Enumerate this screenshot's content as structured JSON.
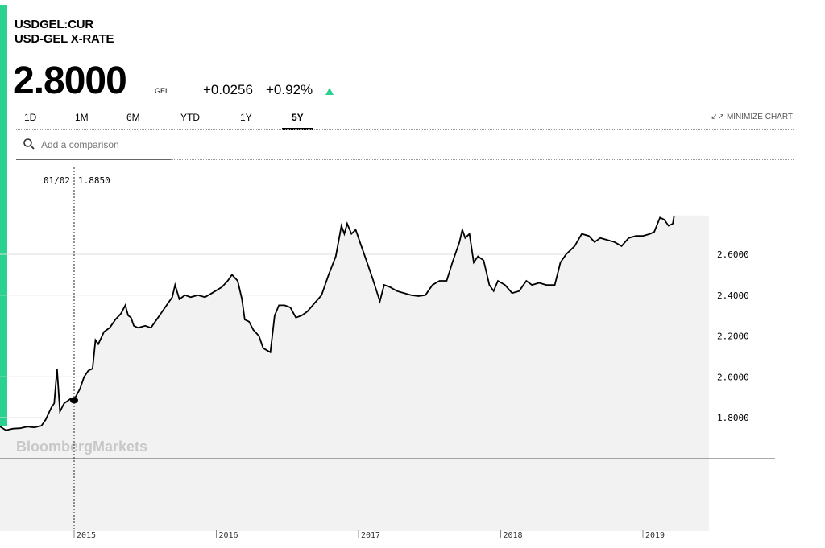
{
  "header": {
    "ticker": "USDGEL:CUR",
    "name": "USD-GEL X-RATE",
    "price": "2.8000",
    "currency": "GEL",
    "change": "+0.0256",
    "change_pct": "+0.92%",
    "direction_icon": "up-triangle-icon",
    "accent_color": "#2bd18e"
  },
  "tabs": [
    {
      "label": "1D",
      "active": false
    },
    {
      "label": "1M",
      "active": false
    },
    {
      "label": "6M",
      "active": false
    },
    {
      "label": "YTD",
      "active": false
    },
    {
      "label": "1Y",
      "active": false
    },
    {
      "label": "5Y",
      "active": true
    }
  ],
  "minimize_label": "MINIMIZE CHART",
  "search": {
    "placeholder": "Add a comparison",
    "value": ""
  },
  "watermark": "BloombergMarkets",
  "chart_data": {
    "type": "area",
    "x_ticks": [
      "2015",
      "2016",
      "2017",
      "2018",
      "2019"
    ],
    "y_ticks": [
      "1.8000",
      "2.0000",
      "2.2000",
      "2.4000",
      "2.6000"
    ],
    "ylim": [
      1.6,
      2.8
    ],
    "crosshair": {
      "date": "01/02",
      "value": "1.8850"
    },
    "line_color": "#000000",
    "fill_color": "#f2f2f2",
    "series": [
      {
        "values": [
          [
            2014.42,
            1.768
          ],
          [
            2014.47,
            1.76
          ],
          [
            2014.52,
            1.738
          ],
          [
            2014.57,
            1.746
          ],
          [
            2014.62,
            1.748
          ],
          [
            2014.67,
            1.756
          ],
          [
            2014.72,
            1.752
          ],
          [
            2014.77,
            1.76
          ],
          [
            2014.8,
            1.79
          ],
          [
            2014.84,
            1.85
          ],
          [
            2014.86,
            1.87
          ],
          [
            2014.88,
            2.04
          ],
          [
            2014.9,
            1.83
          ],
          [
            2014.93,
            1.87
          ],
          [
            2014.95,
            1.88
          ],
          [
            2014.98,
            1.895
          ],
          [
            2015.0,
            1.888
          ],
          [
            2015.04,
            1.94
          ],
          [
            2015.07,
            2.0
          ],
          [
            2015.1,
            2.03
          ],
          [
            2015.13,
            2.04
          ],
          [
            2015.15,
            2.18
          ],
          [
            2015.17,
            2.16
          ],
          [
            2015.21,
            2.22
          ],
          [
            2015.25,
            2.24
          ],
          [
            2015.29,
            2.28
          ],
          [
            2015.33,
            2.31
          ],
          [
            2015.36,
            2.35
          ],
          [
            2015.38,
            2.3
          ],
          [
            2015.4,
            2.29
          ],
          [
            2015.42,
            2.25
          ],
          [
            2015.45,
            2.24
          ],
          [
            2015.5,
            2.25
          ],
          [
            2015.54,
            2.24
          ],
          [
            2015.58,
            2.28
          ],
          [
            2015.62,
            2.32
          ],
          [
            2015.66,
            2.36
          ],
          [
            2015.69,
            2.39
          ],
          [
            2015.71,
            2.45
          ],
          [
            2015.74,
            2.38
          ],
          [
            2015.78,
            2.4
          ],
          [
            2015.82,
            2.39
          ],
          [
            2015.87,
            2.4
          ],
          [
            2015.92,
            2.39
          ],
          [
            2015.97,
            2.41
          ],
          [
            2016.04,
            2.44
          ],
          [
            2016.08,
            2.47
          ],
          [
            2016.11,
            2.5
          ],
          [
            2016.15,
            2.47
          ],
          [
            2016.18,
            2.38
          ],
          [
            2016.2,
            2.28
          ],
          [
            2016.23,
            2.27
          ],
          [
            2016.26,
            2.23
          ],
          [
            2016.3,
            2.2
          ],
          [
            2016.33,
            2.14
          ],
          [
            2016.38,
            2.12
          ],
          [
            2016.41,
            2.3
          ],
          [
            2016.44,
            2.35
          ],
          [
            2016.48,
            2.35
          ],
          [
            2016.52,
            2.34
          ],
          [
            2016.56,
            2.29
          ],
          [
            2016.6,
            2.3
          ],
          [
            2016.64,
            2.32
          ],
          [
            2016.69,
            2.36
          ],
          [
            2016.74,
            2.4
          ],
          [
            2016.79,
            2.5
          ],
          [
            2016.84,
            2.59
          ],
          [
            2016.88,
            2.74
          ],
          [
            2016.9,
            2.7
          ],
          [
            2016.92,
            2.75
          ],
          [
            2016.95,
            2.7
          ],
          [
            2016.98,
            2.72
          ],
          [
            2017.02,
            2.64
          ],
          [
            2017.06,
            2.56
          ],
          [
            2017.1,
            2.48
          ],
          [
            2017.15,
            2.37
          ],
          [
            2017.18,
            2.45
          ],
          [
            2017.22,
            2.44
          ],
          [
            2017.27,
            2.42
          ],
          [
            2017.32,
            2.41
          ],
          [
            2017.37,
            2.4
          ],
          [
            2017.42,
            2.395
          ],
          [
            2017.47,
            2.4
          ],
          [
            2017.52,
            2.45
          ],
          [
            2017.57,
            2.47
          ],
          [
            2017.62,
            2.47
          ],
          [
            2017.66,
            2.56
          ],
          [
            2017.71,
            2.66
          ],
          [
            2017.73,
            2.72
          ],
          [
            2017.75,
            2.68
          ],
          [
            2017.78,
            2.7
          ],
          [
            2017.81,
            2.56
          ],
          [
            2017.84,
            2.59
          ],
          [
            2017.88,
            2.57
          ],
          [
            2017.92,
            2.45
          ],
          [
            2017.95,
            2.42
          ],
          [
            2017.98,
            2.47
          ],
          [
            2018.03,
            2.45
          ],
          [
            2018.08,
            2.41
          ],
          [
            2018.13,
            2.42
          ],
          [
            2018.18,
            2.47
          ],
          [
            2018.22,
            2.45
          ],
          [
            2018.27,
            2.46
          ],
          [
            2018.32,
            2.45
          ],
          [
            2018.38,
            2.45
          ],
          [
            2018.42,
            2.56
          ],
          [
            2018.46,
            2.6
          ],
          [
            2018.52,
            2.64
          ],
          [
            2018.57,
            2.7
          ],
          [
            2018.62,
            2.69
          ],
          [
            2018.66,
            2.66
          ],
          [
            2018.7,
            2.68
          ],
          [
            2018.75,
            2.67
          ],
          [
            2018.8,
            2.66
          ],
          [
            2018.85,
            2.64
          ],
          [
            2018.9,
            2.68
          ],
          [
            2018.95,
            2.69
          ],
          [
            2019.0,
            2.69
          ],
          [
            2019.05,
            2.7
          ],
          [
            2019.08,
            2.71
          ],
          [
            2019.12,
            2.78
          ],
          [
            2019.15,
            2.77
          ],
          [
            2019.18,
            2.74
          ],
          [
            2019.21,
            2.75
          ],
          [
            2019.22,
            2.79
          ]
        ]
      }
    ]
  }
}
